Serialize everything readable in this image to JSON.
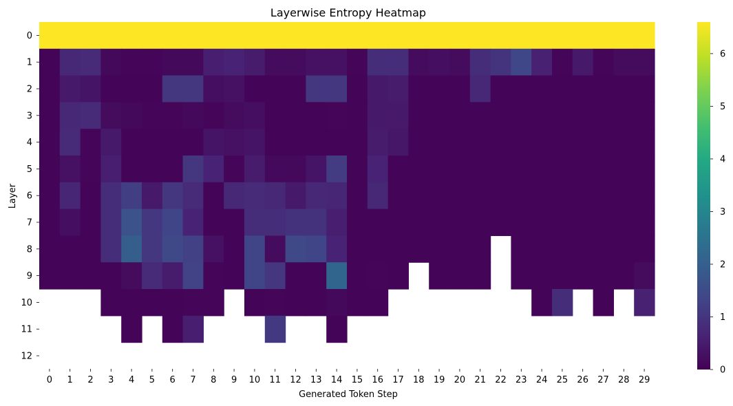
{
  "chart_data": {
    "type": "heatmap",
    "title": "Layerwise Entropy Heatmap",
    "xlabel": "Generated Token Step",
    "ylabel": "Layer",
    "x_ticks": [
      "0",
      "1",
      "2",
      "3",
      "4",
      "5",
      "6",
      "7",
      "8",
      "9",
      "10",
      "11",
      "12",
      "13",
      "14",
      "15",
      "16",
      "17",
      "18",
      "19",
      "20",
      "21",
      "22",
      "23",
      "24",
      "25",
      "26",
      "27",
      "28",
      "29"
    ],
    "y_ticks": [
      "0",
      "1",
      "2",
      "3",
      "4",
      "5",
      "6",
      "7",
      "8",
      "9",
      "10",
      "11",
      "12"
    ],
    "colorbar": {
      "min": 0,
      "max": 6.6,
      "ticks": [
        "0",
        "1",
        "2",
        "3",
        "4",
        "5",
        "6"
      ],
      "colormap": "viridis"
    },
    "values": [
      [
        6.6,
        6.6,
        6.6,
        6.6,
        6.6,
        6.6,
        6.6,
        6.6,
        6.6,
        6.6,
        6.6,
        6.6,
        6.6,
        6.6,
        6.6,
        6.6,
        6.6,
        6.6,
        6.6,
        6.6,
        6.6,
        6.6,
        6.6,
        6.6,
        6.6,
        6.6,
        6.6,
        6.6,
        6.6,
        6.6
      ],
      [
        0.05,
        0.75,
        0.8,
        0.15,
        0.1,
        0.1,
        0.15,
        0.15,
        0.55,
        0.65,
        0.5,
        0.2,
        0.2,
        0.3,
        0.3,
        0.1,
        0.85,
        0.85,
        0.2,
        0.25,
        0.2,
        0.85,
        1.0,
        1.4,
        0.6,
        0.1,
        0.45,
        0.1,
        0.2,
        0.2
      ],
      [
        0.05,
        0.45,
        0.35,
        0.05,
        0.05,
        0.05,
        1.05,
        1.05,
        0.25,
        0.3,
        0.05,
        0.05,
        0.05,
        1.05,
        1.05,
        0.05,
        0.45,
        0.5,
        0.05,
        0.05,
        0.05,
        0.75,
        0.05,
        0.05,
        0.05,
        0.05,
        0.05,
        0.05,
        0.05,
        0.05
      ],
      [
        0.05,
        0.75,
        0.8,
        0.2,
        0.15,
        0.1,
        0.1,
        0.15,
        0.1,
        0.2,
        0.25,
        0.05,
        0.05,
        0.05,
        0.1,
        0.05,
        0.45,
        0.45,
        0.05,
        0.05,
        0.05,
        0.05,
        0.05,
        0.05,
        0.05,
        0.05,
        0.05,
        0.05,
        0.05,
        0.05
      ],
      [
        0.05,
        0.8,
        0.1,
        0.45,
        0.05,
        0.05,
        0.05,
        0.05,
        0.35,
        0.3,
        0.35,
        0.05,
        0.05,
        0.05,
        0.05,
        0.05,
        0.5,
        0.4,
        0.05,
        0.05,
        0.05,
        0.05,
        0.05,
        0.05,
        0.05,
        0.05,
        0.05,
        0.05,
        0.05,
        0.05
      ],
      [
        0.05,
        0.3,
        0.1,
        0.55,
        0.05,
        0.05,
        0.05,
        1.05,
        0.65,
        0.1,
        0.5,
        0.15,
        0.15,
        0.35,
        1.15,
        0.05,
        0.65,
        0.05,
        0.05,
        0.05,
        0.05,
        0.05,
        0.05,
        0.05,
        0.05,
        0.05,
        0.05,
        0.05,
        0.05,
        0.05
      ],
      [
        0.05,
        0.7,
        0.05,
        0.85,
        1.2,
        0.45,
        1.05,
        0.8,
        0.05,
        0.75,
        0.8,
        0.75,
        0.45,
        0.75,
        0.7,
        0.05,
        0.75,
        0.05,
        0.05,
        0.05,
        0.05,
        0.05,
        0.05,
        0.05,
        0.05,
        0.05,
        0.05,
        0.05,
        0.05,
        0.05
      ],
      [
        0.05,
        0.25,
        0.05,
        0.85,
        1.65,
        1.05,
        1.35,
        0.65,
        0.05,
        0.05,
        0.85,
        0.85,
        0.95,
        0.95,
        0.55,
        0.05,
        0.05,
        0.05,
        0.05,
        0.05,
        0.05,
        0.05,
        0.05,
        0.05,
        0.05,
        0.05,
        0.05,
        0.05,
        0.05,
        0.05
      ],
      [
        0.05,
        0.05,
        0.05,
        0.85,
        1.95,
        1.05,
        1.45,
        1.25,
        0.3,
        0.05,
        1.35,
        0.2,
        1.45,
        1.35,
        0.65,
        0.05,
        0.05,
        0.05,
        0.05,
        0.05,
        0.05,
        0.05,
        null,
        0.05,
        0.05,
        0.05,
        0.05,
        0.05,
        0.05,
        0.05
      ],
      [
        0.05,
        0.05,
        0.05,
        0.05,
        0.2,
        0.8,
        0.5,
        1.3,
        0.1,
        0.05,
        1.35,
        1.05,
        0.05,
        0.05,
        2.15,
        0.05,
        0.1,
        0.05,
        null,
        0.05,
        0.05,
        0.05,
        null,
        0.05,
        0.05,
        0.05,
        0.05,
        0.05,
        0.05,
        0.2
      ],
      [
        null,
        null,
        null,
        0.05,
        0.05,
        0.05,
        0.05,
        0.1,
        0.1,
        null,
        0.05,
        0.1,
        0.05,
        0.05,
        0.15,
        0.05,
        0.05,
        null,
        null,
        null,
        null,
        null,
        null,
        null,
        0.05,
        0.85,
        null,
        0.05,
        null,
        0.6
      ],
      [
        null,
        null,
        null,
        null,
        0.05,
        null,
        0.05,
        0.55,
        null,
        null,
        null,
        1.1,
        null,
        null,
        0.05,
        null,
        null,
        null,
        null,
        null,
        null,
        null,
        null,
        null,
        null,
        null,
        null,
        null,
        null,
        null
      ],
      [
        null,
        null,
        null,
        null,
        null,
        null,
        null,
        null,
        null,
        null,
        null,
        null,
        null,
        null,
        null,
        null,
        null,
        null,
        null,
        null,
        null,
        null,
        null,
        null,
        null,
        null,
        null,
        null,
        null,
        null
      ]
    ]
  }
}
